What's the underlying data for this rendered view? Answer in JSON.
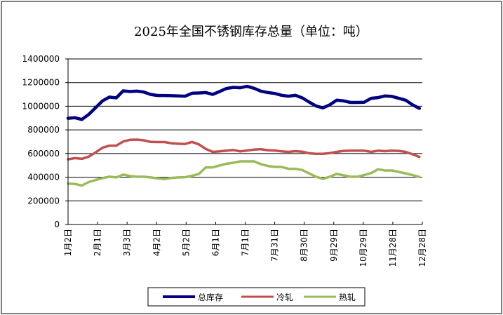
{
  "chart_data": {
    "type": "line",
    "title": "2025年全国不锈钢库存总量（单位：吨）",
    "xlabel": "",
    "ylabel": "",
    "ylim": [
      0,
      1400000
    ],
    "yticks": [
      "0",
      "200000",
      "400000",
      "600000",
      "800000",
      "1000000",
      "1200000",
      "1400000"
    ],
    "grid": true,
    "legend_position": "bottom",
    "x_tick_labels": [
      "1月2日",
      "2月1日",
      "3月3日",
      "4月2日",
      "5月2日",
      "6月1日",
      "7月1日",
      "7月31日",
      "8月30日",
      "9月29日",
      "10月29日",
      "11月28日",
      "12月28日"
    ],
    "x_tick_days": [
      0,
      30,
      60,
      90,
      120,
      150,
      180,
      210,
      240,
      270,
      300,
      330,
      360
    ],
    "x_days_step": 7,
    "series": [
      {
        "name": "总库存",
        "color": "#000080",
        "values": [
          898000,
          903000,
          888000,
          931000,
          988000,
          1045000,
          1077000,
          1071000,
          1130000,
          1124000,
          1128000,
          1120000,
          1100000,
          1091000,
          1091000,
          1089000,
          1087000,
          1085000,
          1110000,
          1112000,
          1116000,
          1100000,
          1124000,
          1150000,
          1160000,
          1156000,
          1168000,
          1152000,
          1128000,
          1116000,
          1108000,
          1093000,
          1085000,
          1093000,
          1071000,
          1035000,
          1002000,
          986000,
          1012000,
          1051000,
          1045000,
          1032000,
          1032000,
          1034000,
          1067000,
          1073000,
          1087000,
          1083000,
          1067000,
          1051000,
          1012000,
          982000
        ]
      },
      {
        "name": "冷轧",
        "color": "#C0504D",
        "values": [
          551000,
          561000,
          555000,
          574000,
          610000,
          649000,
          667000,
          667000,
          702000,
          716000,
          718000,
          712000,
          698000,
          697000,
          697000,
          687000,
          683000,
          681000,
          698000,
          677000,
          639000,
          614000,
          618000,
          624000,
          630000,
          618000,
          626000,
          633000,
          637000,
          628000,
          626000,
          618000,
          614000,
          620000,
          616000,
          602000,
          598000,
          598000,
          604000,
          614000,
          622000,
          624000,
          624000,
          624000,
          614000,
          624000,
          620000,
          624000,
          622000,
          614000,
          594000,
          572000
        ]
      },
      {
        "name": "热轧",
        "color": "#9BBB59",
        "values": [
          345000,
          343000,
          329000,
          359000,
          376000,
          392000,
          404000,
          398000,
          422000,
          410000,
          404000,
          404000,
          398000,
          390000,
          384000,
          394000,
          398000,
          400000,
          412000,
          428000,
          483000,
          483000,
          499000,
          514000,
          522000,
          534000,
          534000,
          534000,
          510000,
          495000,
          487000,
          487000,
          471000,
          471000,
          461000,
          432000,
          404000,
          386000,
          404000,
          428000,
          416000,
          404000,
          404000,
          418000,
          435000,
          467000,
          457000,
          457000,
          445000,
          432000,
          418000,
          402000
        ]
      }
    ]
  }
}
